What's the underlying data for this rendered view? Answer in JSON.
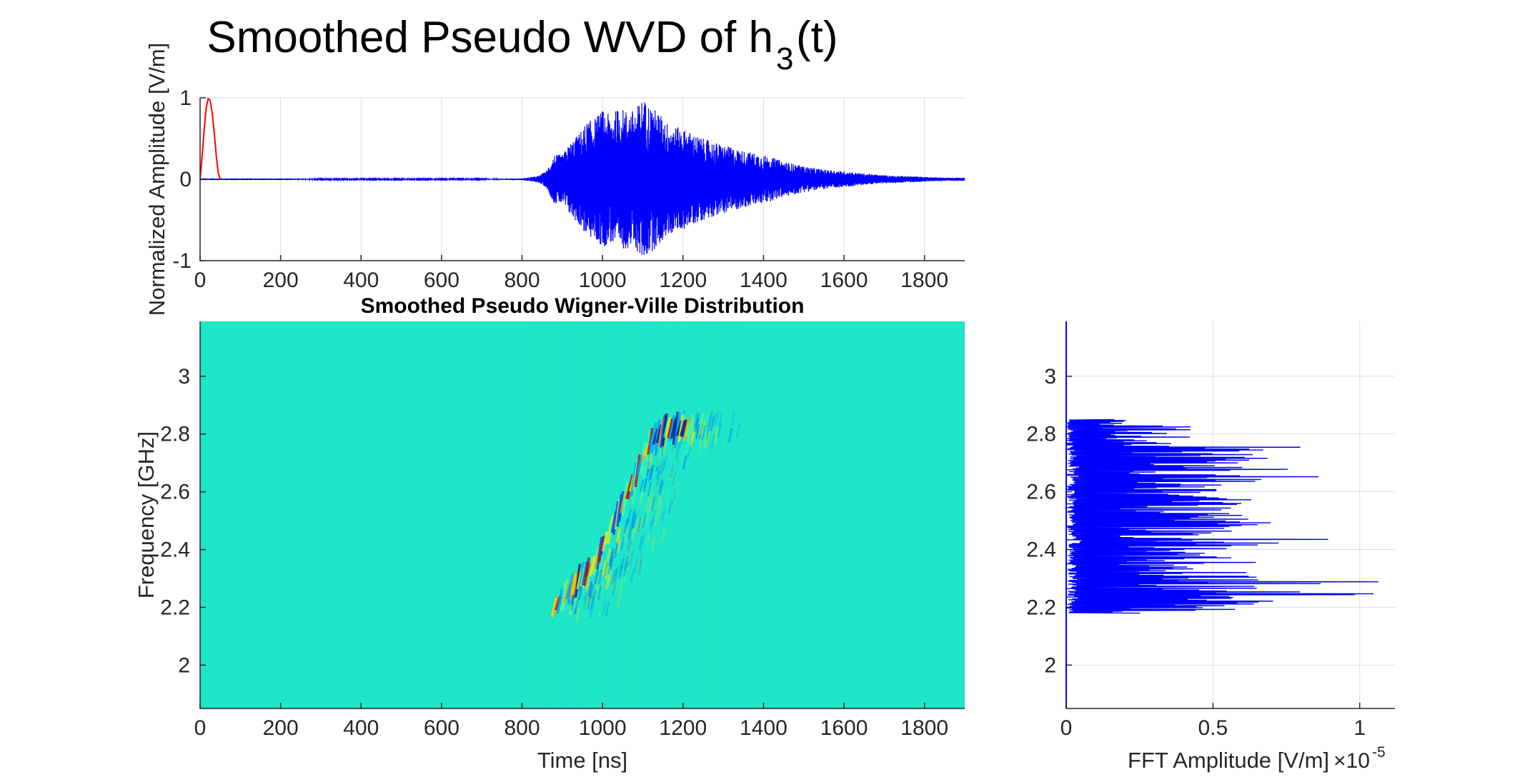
{
  "figure": {
    "title_main": "Smoothed Pseudo WVD of  h",
    "title_sub": "3",
    "title_tail": "(t)"
  },
  "chart_data": [
    {
      "id": "signal",
      "type": "line",
      "ylabel": "Normalized Amplitude [V/m]",
      "xlim": [
        0,
        1900
      ],
      "ylim": [
        -1,
        1
      ],
      "xticks": [
        0,
        200,
        400,
        600,
        800,
        1000,
        1200,
        1400,
        1600,
        1800
      ],
      "yticks": [
        -1,
        0,
        1
      ],
      "grid": true,
      "series": [
        {
          "color": "#ff0000",
          "x": [
            0,
            5,
            10,
            15,
            20,
            25,
            30,
            35,
            40,
            45,
            50
          ],
          "y": [
            0,
            0.28,
            0.6,
            0.87,
            0.99,
            0.97,
            0.82,
            0.58,
            0.3,
            0.08,
            0
          ]
        },
        {
          "color": "#0000ff",
          "x": [
            0,
            100,
            200,
            300,
            400,
            500,
            600,
            700,
            800,
            840,
            860,
            880,
            900,
            920,
            940,
            960,
            980,
            1000,
            1020,
            1040,
            1060,
            1080,
            1100,
            1120,
            1140,
            1160,
            1180,
            1200,
            1250,
            1300,
            1350,
            1400,
            1450,
            1500,
            1550,
            1600,
            1650,
            1700,
            1750,
            1800,
            1850,
            1900
          ],
          "env": [
            0.01,
            0.01,
            0.01,
            0.005,
            0.005,
            0.005,
            0.005,
            0.005,
            0.01,
            0.04,
            0.1,
            0.3,
            0.3,
            0.45,
            0.55,
            0.7,
            0.75,
            0.85,
            0.78,
            0.88,
            0.85,
            0.85,
            1.0,
            0.9,
            0.82,
            0.7,
            0.65,
            0.62,
            0.5,
            0.42,
            0.35,
            0.3,
            0.22,
            0.16,
            0.12,
            0.1,
            0.07,
            0.05,
            0.04,
            0.03,
            0.02,
            0.02
          ]
        }
      ]
    },
    {
      "id": "spwvd",
      "type": "heatmap",
      "title": "Smoothed Pseudo Wigner-Ville Distribution",
      "xlabel": "Time [ns]",
      "ylabel": "Frequency [GHz]",
      "xlim": [
        0,
        1900
      ],
      "ylim": [
        1.85,
        3.19
      ],
      "xticks": [
        0,
        200,
        400,
        600,
        800,
        1000,
        1200,
        1400,
        1600,
        1800
      ],
      "yticks": [
        2,
        2.2,
        2.4,
        2.6,
        2.8,
        3
      ],
      "background": "#1ee6c8",
      "ridge": {
        "t": [
          880,
          930,
          980,
          1030,
          1080,
          1120,
          1160,
          1220
        ],
        "f": [
          2.2,
          2.28,
          2.35,
          2.5,
          2.65,
          2.78,
          2.82,
          2.82
        ]
      }
    },
    {
      "id": "fft",
      "type": "line",
      "xlabel": "FFT Amplitude [V/m]",
      "x_exponent": "-5",
      "xlim": [
        0,
        1.12
      ],
      "ylim": [
        1.85,
        3.19
      ],
      "xticks": [
        0,
        0.5,
        1
      ],
      "xtick_labels": [
        "0",
        "0.5",
        "1"
      ],
      "yticks": [
        2,
        2.2,
        2.4,
        2.6,
        2.8,
        3
      ],
      "grid": true,
      "series": [
        {
          "color": "#0000ff",
          "f": [
            2.18,
            2.2,
            2.22,
            2.25,
            2.27,
            2.29,
            2.31,
            2.33,
            2.35,
            2.37,
            2.39,
            2.41,
            2.43,
            2.45,
            2.47,
            2.49,
            2.51,
            2.53,
            2.55,
            2.57,
            2.59,
            2.61,
            2.63,
            2.65,
            2.67,
            2.69,
            2.71,
            2.73,
            2.75,
            2.77,
            2.79,
            2.81,
            2.83,
            2.85
          ],
          "a": [
            0.55,
            0.6,
            0.7,
            1.1,
            0.6,
            1.12,
            0.65,
            0.9,
            0.7,
            0.6,
            0.65,
            0.5,
            1.12,
            0.55,
            0.6,
            0.7,
            0.8,
            0.55,
            0.65,
            0.75,
            0.5,
            0.7,
            0.65,
            0.9,
            0.6,
            1.05,
            0.7,
            0.8,
            0.9,
            0.6,
            0.45,
            0.5,
            0.4,
            0.2
          ]
        }
      ]
    }
  ]
}
